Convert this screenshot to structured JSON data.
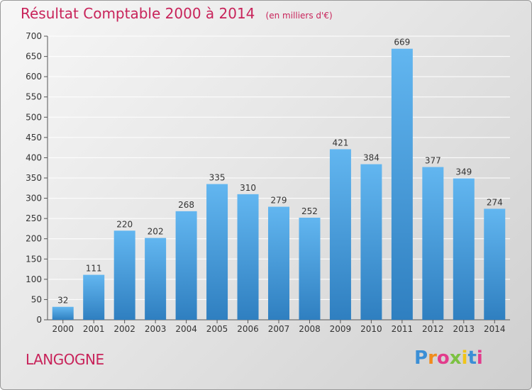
{
  "chart_data": {
    "type": "bar",
    "title": "Résultat Comptable 2000 à 2014",
    "subtitle": "(en milliers d'€)",
    "categories": [
      "2000",
      "2001",
      "2002",
      "2003",
      "2004",
      "2005",
      "2006",
      "2007",
      "2008",
      "2009",
      "2010",
      "2011",
      "2012",
      "2013",
      "2014"
    ],
    "values": [
      32,
      111,
      220,
      202,
      268,
      335,
      310,
      279,
      252,
      421,
      384,
      669,
      377,
      349,
      274
    ],
    "ylim": [
      0,
      700
    ],
    "yticks": [
      0,
      50,
      100,
      150,
      200,
      250,
      300,
      350,
      400,
      450,
      500,
      550,
      600,
      650,
      700
    ],
    "grid": true,
    "bar_color": "#4a9fe0",
    "data_labels": true
  },
  "footer": {
    "city": "LANGOGNE",
    "brand": "Proxiti"
  },
  "colors": {
    "title": "#c8235a",
    "grid": "#ffffff",
    "bar_top": "#62b6f0",
    "bar_bottom": "#2f7fc0"
  }
}
